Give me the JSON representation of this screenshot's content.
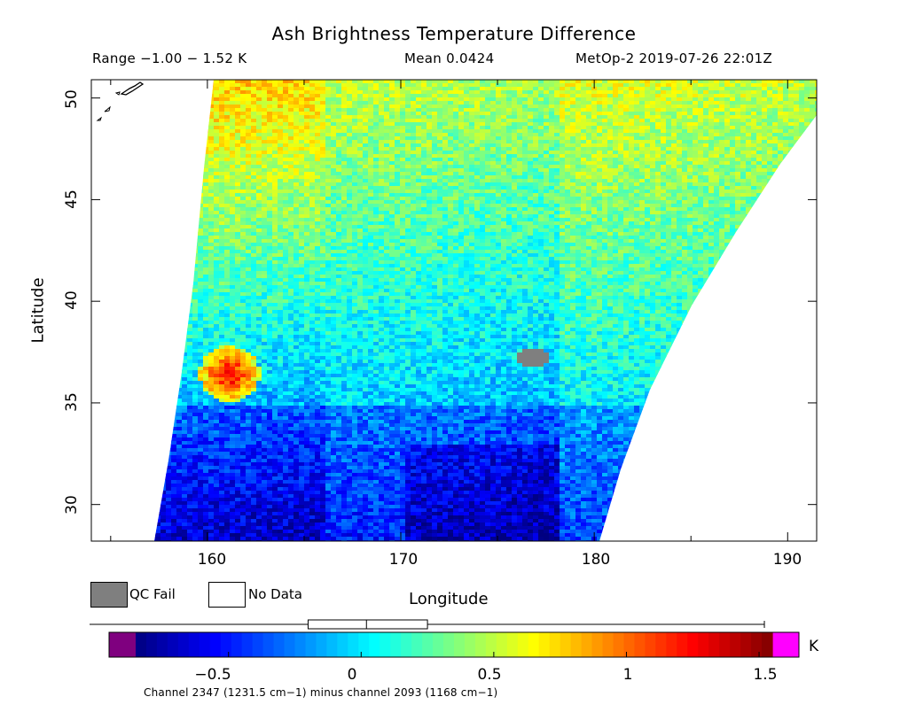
{
  "title": "Ash Brightness Temperature Difference",
  "header": {
    "range": "Range −1.00 − 1.52 K",
    "mean": "Mean 0.0424",
    "satellite_time": "MetOp-2 2019-07-26 22:01Z"
  },
  "axes": {
    "x_label": "Longitude",
    "y_label": "Latitude",
    "x_ticks": [
      "160",
      "170",
      "180",
      "190"
    ],
    "y_ticks": [
      "30",
      "35",
      "40",
      "45",
      "50"
    ],
    "x_range": [
      154,
      191.5
    ],
    "y_range": [
      28.2,
      50.9
    ]
  },
  "legend": {
    "qc_fail_label": "QC Fail",
    "qc_fail_color": "#7f7f7f",
    "no_data_label": "No Data",
    "no_data_color": "#ffffff"
  },
  "colorbar": {
    "unit": "K",
    "ticks": [
      "−0.5",
      "0",
      "0.5",
      "1",
      "1.5"
    ],
    "range": [
      -0.85,
      1.55
    ],
    "under_color": "#7f007f",
    "over_color": "#ff00ff",
    "box_range": [
      -0.2,
      0.25
    ],
    "box_median": 0.02,
    "whisker_range": [
      -0.85,
      1.52
    ]
  },
  "footnote": "Channel 2347 (1231.5 cm−1) minus channel 2093 (1168 cm−1)",
  "map_data": {
    "type": "swath-heatmap",
    "hot_spot": {
      "lon": 161,
      "lat": 36.5,
      "value": 1.35
    },
    "qc_fail_patch": {
      "lon": 176.7,
      "lat": 37.3
    }
  }
}
